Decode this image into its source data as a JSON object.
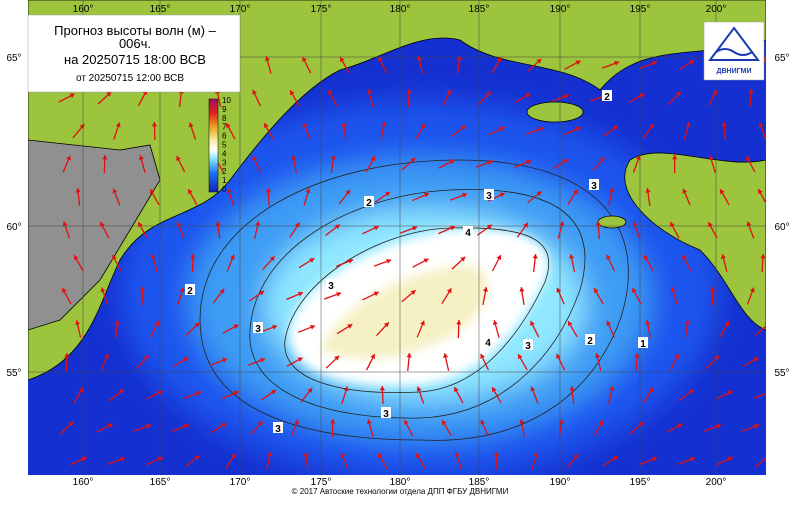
{
  "header": {
    "title": "Прогноз высоты волн (м) –",
    "title_cont": "006ч.",
    "valid": "на 20250715 18:00 ВСВ",
    "issued": "от 20250715 12:00 ВСВ"
  },
  "lon_labels": [
    "160°",
    "165°",
    "170°",
    "175°",
    "180°",
    "185°",
    "190°",
    "195°",
    "200°"
  ],
  "lat_labels": [
    "65°",
    "60°",
    "55°"
  ],
  "colorbar": {
    "labels": [
      "10",
      "9",
      "8",
      "7",
      "6",
      "5",
      "4",
      "3",
      "2",
      "1",
      "0"
    ]
  },
  "contour_labels": [
    "2",
    "2",
    "3",
    "3",
    "4",
    "4",
    "3",
    "3",
    "3",
    "2",
    "1",
    "3",
    "3",
    "2"
  ],
  "logo": "ДВНИГМИ",
  "footer": "© 2017 Автоские технологии отдела ДПП ФГБУ ДВНИГМИ"
}
